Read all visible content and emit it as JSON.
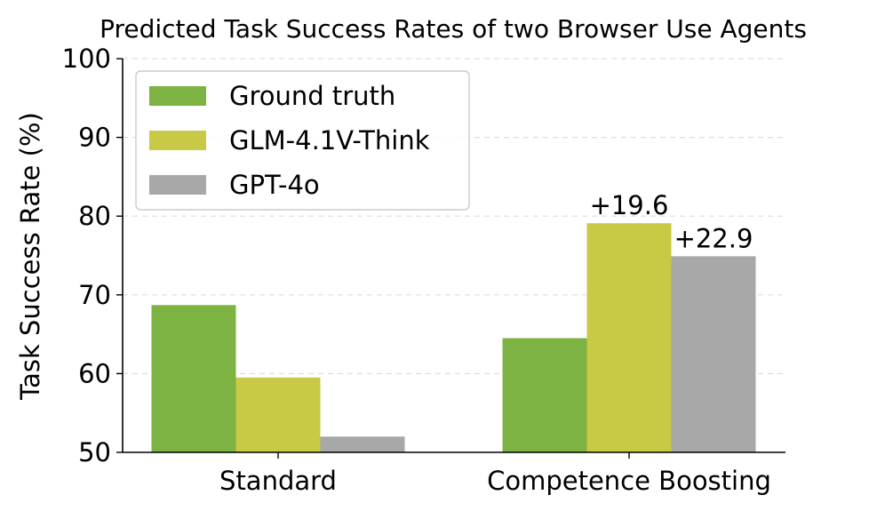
{
  "chart_data": {
    "type": "bar",
    "title": "Predicted Task Success Rates of two Browser Use Agents",
    "xlabel": "",
    "ylabel": "Task Success Rate (%)",
    "ylim": [
      50,
      100
    ],
    "yticks": [
      50,
      60,
      70,
      80,
      90,
      100
    ],
    "grid": "y-dashed",
    "legend_position": "top-left",
    "categories": [
      "Standard",
      "Competence Boosting"
    ],
    "series": [
      {
        "name": "Ground truth",
        "color": "#7cb342",
        "values": [
          68.7,
          64.5
        ]
      },
      {
        "name": "GLM-4.1V-Think",
        "color": "#c8c944",
        "values": [
          59.5,
          79.1
        ]
      },
      {
        "name": "GPT-4o",
        "color": "#a8a8a8",
        "values": [
          52.0,
          74.9
        ]
      }
    ],
    "annotations": [
      {
        "text": "+19.6",
        "category": 1,
        "series": 1
      },
      {
        "text": "+22.9",
        "category": 1,
        "series": 2
      }
    ]
  }
}
